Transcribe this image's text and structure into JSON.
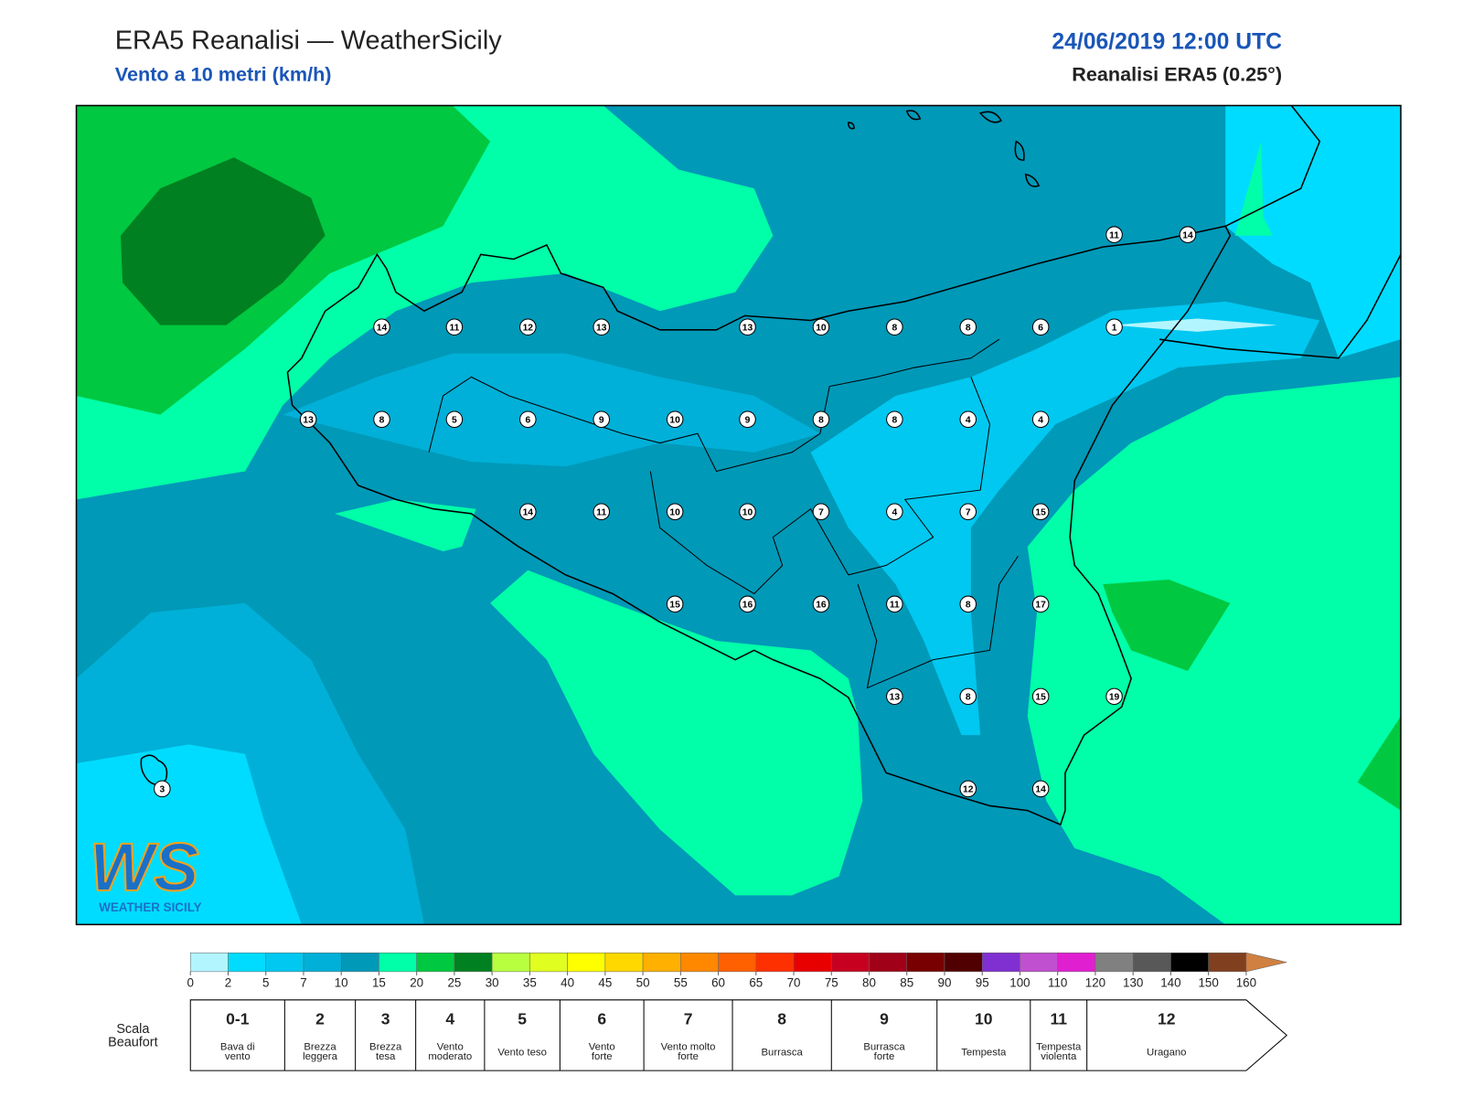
{
  "header": {
    "title": "ERA5 Reanalisi — WeatherSicily",
    "subtitle": "Vento a 10 metri (km/h)",
    "datetime": "24/06/2019 12:00 UTC",
    "source": "Reanalisi ERA5 (0.25°)"
  },
  "map": {
    "stations": [
      14,
      11,
      12,
      13,
      13,
      10,
      8,
      8,
      6,
      1,
      11,
      14,
      13,
      8,
      5,
      6,
      9,
      10,
      9,
      8,
      8,
      4,
      4,
      14,
      11,
      10,
      10,
      7,
      4,
      7,
      15,
      15,
      16,
      16,
      11,
      8,
      17,
      13,
      8,
      15,
      19,
      12,
      14,
      3
    ],
    "logo": {
      "letters": "WS",
      "name": "WEATHER SICILY"
    }
  },
  "colorbar": {
    "ticks": [
      0,
      2,
      5,
      7,
      10,
      15,
      20,
      25,
      30,
      35,
      40,
      45,
      50,
      55,
      60,
      65,
      70,
      75,
      80,
      85,
      90,
      95,
      100,
      110,
      120,
      130,
      140,
      150,
      160
    ],
    "colors": [
      "#b3f5ff",
      "#00dcff",
      "#00c8f0",
      "#00b0d8",
      "#0099b8",
      "#00ffa8",
      "#00c840",
      "#008020",
      "#b8ff40",
      "#e0ff20",
      "#ffff00",
      "#ffd800",
      "#ffb000",
      "#ff8800",
      "#ff6000",
      "#ff3000",
      "#e80000",
      "#c80020",
      "#a00018",
      "#780000",
      "#500000",
      "#8030d0",
      "#c050d0",
      "#e020d0",
      "#808080",
      "#585858",
      "#000000",
      "#804020",
      "#d08040"
    ]
  },
  "beaufort": {
    "label": [
      "Scala",
      "Beaufort"
    ],
    "levels": [
      {
        "force": "0-1",
        "desc": [
          "Bava di",
          "vento"
        ]
      },
      {
        "force": "2",
        "desc": [
          "Brezza",
          "leggera"
        ]
      },
      {
        "force": "3",
        "desc": [
          "Brezza",
          "tesa"
        ]
      },
      {
        "force": "4",
        "desc": [
          "Vento",
          "moderato"
        ]
      },
      {
        "force": "5",
        "desc": [
          "Vento teso"
        ]
      },
      {
        "force": "6",
        "desc": [
          "Vento",
          "forte"
        ]
      },
      {
        "force": "7",
        "desc": [
          "Vento molto",
          "forte"
        ]
      },
      {
        "force": "8",
        "desc": [
          "Burrasca"
        ]
      },
      {
        "force": "9",
        "desc": [
          "Burrasca",
          "forte"
        ]
      },
      {
        "force": "10",
        "desc": [
          "Tempesta"
        ]
      },
      {
        "force": "11",
        "desc": [
          "Tempesta",
          "violenta"
        ]
      },
      {
        "force": "12",
        "desc": [
          "Uragano"
        ]
      }
    ]
  }
}
